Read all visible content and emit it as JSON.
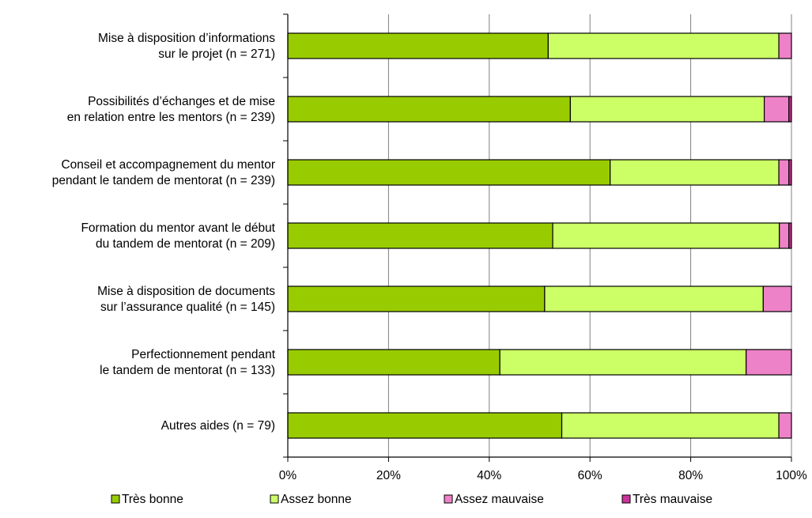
{
  "chart_data": {
    "type": "bar",
    "orientation": "horizontal",
    "stacked": true,
    "categories": [
      [
        "Mise à disposition d’informations",
        "sur le projet (n = 271)"
      ],
      [
        "Possibilités d’échanges et de mise",
        "en relation entre les mentors (n = 239)"
      ],
      [
        "Conseil et accompagnement du mentor",
        "pendant le tandem de mentorat (n = 239)"
      ],
      [
        "Formation du mentor avant le début",
        "du tandem de mentorat (n = 209)"
      ],
      [
        "Mise à disposition de documents",
        "sur l’assurance qualité (n = 145)"
      ],
      [
        "Perfectionnement pendant",
        "le tandem de mentorat (n = 133)"
      ],
      [
        "Autres aides (n = 79)"
      ]
    ],
    "series": [
      {
        "name": "Très bonne",
        "color": "#99CC00",
        "values": [
          51.7,
          56.1,
          64.0,
          52.6,
          51.0,
          42.1,
          54.4
        ]
      },
      {
        "name": "Assez bonne",
        "color": "#CCFF66",
        "values": [
          45.8,
          38.5,
          33.5,
          45.0,
          43.4,
          48.9,
          43.1
        ]
      },
      {
        "name": "Assez mauvaise",
        "color": "#EE82C8",
        "values": [
          2.5,
          4.9,
          2.0,
          1.9,
          5.6,
          9.0,
          2.5
        ]
      },
      {
        "name": "Très mauvaise",
        "color": "#CC3399",
        "values": [
          0.0,
          0.5,
          0.5,
          0.5,
          0.0,
          0.0,
          0.0
        ]
      }
    ],
    "xlim": [
      0,
      100
    ],
    "xticks": [
      "0%",
      "20%",
      "40%",
      "60%",
      "80%",
      "100%"
    ],
    "grid": true,
    "legend_position": "bottom"
  }
}
